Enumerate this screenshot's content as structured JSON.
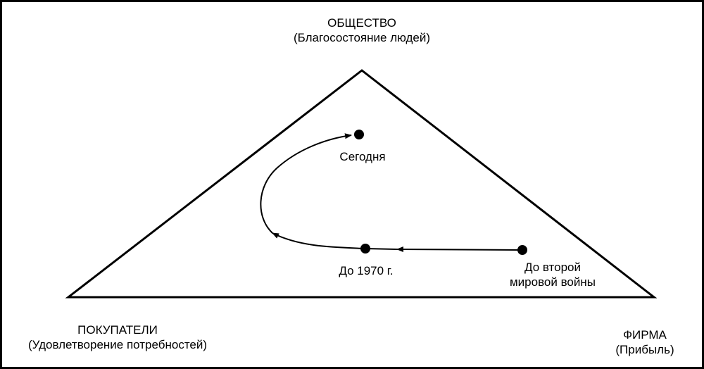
{
  "vertices": {
    "top": {
      "title": "ОБЩЕСТВО",
      "subtitle": "(Благосостояние людей)"
    },
    "left": {
      "title": "ПОКУПАТЕЛИ",
      "subtitle": "(Удовлетворение потребностей)"
    },
    "right": {
      "title": "ФИРМА",
      "subtitle": "(Прибыль)"
    }
  },
  "points": {
    "today": "Сегодня",
    "y1970": "До 1970 г.",
    "ww2_line1": "До второй",
    "ww2_line2": "мировой войны"
  },
  "colors": {
    "stroke": "#000000",
    "background": "#ffffff"
  }
}
